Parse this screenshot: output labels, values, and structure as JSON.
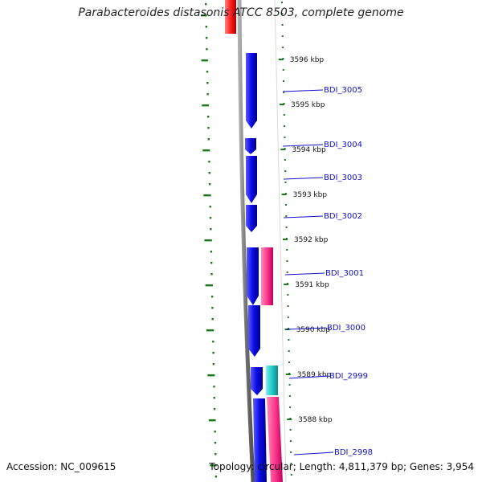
{
  "title": "Parabacteroides distasonis ATCC 8503, complete genome",
  "accession": "Accession: NC_009615",
  "topology": {
    "topology_text": "Topology: circular;",
    "length_text": "Length: 4,811,379 bp;",
    "genes_text": "Genes: 3,954"
  },
  "ticks": [
    {
      "label": "3596 kbp"
    },
    {
      "label": "3595 kbp"
    },
    {
      "label": "3594 kbp"
    },
    {
      "label": "3593 kbp"
    },
    {
      "label": "3592 kbp"
    },
    {
      "label": "3591 kbp"
    },
    {
      "label": "3590 kbp"
    },
    {
      "label": "3589 kbp"
    },
    {
      "label": "3588 kbp"
    }
  ],
  "genes": [
    {
      "label": "BDI_3005"
    },
    {
      "label": "BDI_3004"
    },
    {
      "label": "BDI_3003"
    },
    {
      "label": "BDI_3002"
    },
    {
      "label": "BDI_3001"
    },
    {
      "label": "BDI_3000"
    },
    {
      "label": "BDI_2999"
    },
    {
      "label": "BDI_2998"
    }
  ],
  "colors": {
    "cds": "#0a0ae6",
    "rna": "#ff3a8c",
    "trna": "#20c8c8",
    "red": "#ff2020",
    "backbone": "#808080",
    "gc": "#1a7a1a",
    "label": "#1111cc"
  }
}
